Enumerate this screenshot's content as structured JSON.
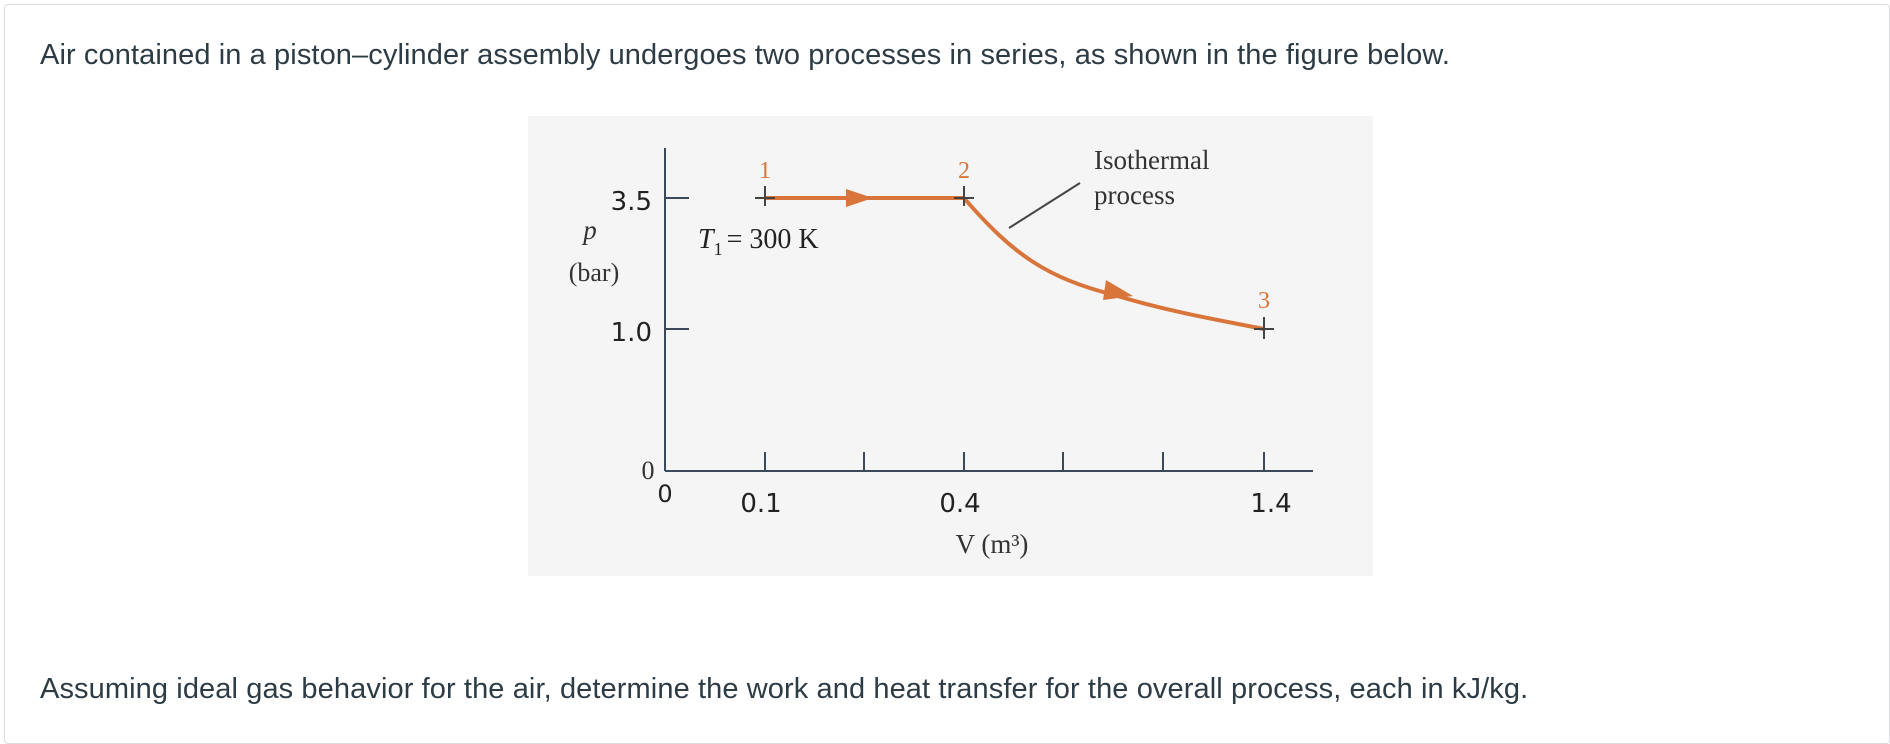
{
  "question": {
    "intro": "Air contained in a piston–cylinder assembly undergoes two processes in series, as shown in the figure below.",
    "outro": "Assuming ideal gas behavior for the air, determine the work and heat transfer for the overall process, each in kJ/kg."
  },
  "figure": {
    "ylabel_symbol": "p",
    "ylabel_unit": "(bar)",
    "y_ticks": [
      "3.5",
      "1.0"
    ],
    "y_origin": "0",
    "x_origin": "0",
    "x_ticks": [
      "0.1",
      "0.4",
      "1.4"
    ],
    "xlabel": "V (m³)",
    "annotation_temp_symbol": "T",
    "annotation_temp_sub": "1",
    "annotation_temp_value": "= 300 K",
    "callout_line1": "Isothermal",
    "callout_line2": "process",
    "states": [
      "1",
      "2",
      "3"
    ],
    "colors": {
      "process": "#d9753a",
      "axis": "#3a4a5a",
      "background": "#f5f5f5"
    }
  },
  "chart_data": {
    "type": "line",
    "xlabel": "V (m³)",
    "ylabel": "p (bar)",
    "series": [
      {
        "name": "",
        "x": [
          0.1,
          0.4
        ],
        "y": [
          3.5,
          3.5
        ]
      },
      {
        "name": "Isothermal process",
        "x": [
          0.4,
          1.4
        ],
        "y": [
          3.5,
          1.0
        ]
      }
    ],
    "annotations": [
      "T1 = 300 K",
      "Isothermal process",
      "1",
      "2",
      "3"
    ]
  }
}
